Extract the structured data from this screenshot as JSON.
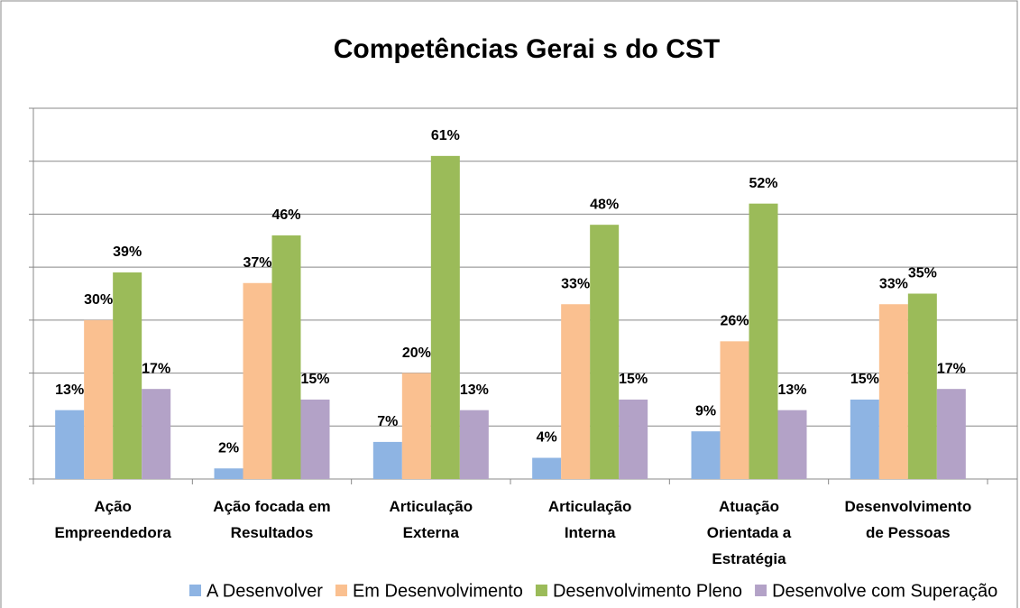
{
  "chart_data": {
    "type": "bar",
    "title": "Competências  Gerai s do CST",
    "categories": [
      "Ação\nEmpreendedora",
      "Ação focada em\nResultados",
      "Articulação\nExterna",
      "Articulação\nInterna",
      "Atuação\nOrientada a\nEstratégia",
      "Desenvolvimento\nde Pessoas"
    ],
    "series": [
      {
        "name": "A Desenvolver",
        "color": "#8eb4e3",
        "values": [
          13,
          2,
          7,
          4,
          9,
          15
        ],
        "value_labels": [
          "13%",
          "2%",
          "7%",
          "4%",
          "9%",
          "15%"
        ]
      },
      {
        "name": "Em Desenvolvimento",
        "color": "#fac090",
        "values": [
          30,
          37,
          20,
          33,
          26,
          33
        ],
        "value_labels": [
          "30%",
          "37%",
          "20%",
          "33%",
          "26%",
          "33%"
        ]
      },
      {
        "name": "Desenvolvimento Pleno",
        "color": "#9bbb59",
        "values": [
          39,
          46,
          61,
          48,
          52,
          35
        ],
        "value_labels": [
          "39%",
          "46%",
          "61%",
          "48%",
          "52%",
          "35%"
        ]
      },
      {
        "name": "Desenvolve com Superação",
        "color": "#b3a2c7",
        "values": [
          17,
          15,
          13,
          15,
          13,
          17
        ],
        "value_labels": [
          "17%",
          "15%",
          "13%",
          "15%",
          "13%",
          "17%"
        ]
      }
    ],
    "ylim": [
      0,
      70
    ],
    "yticks": [
      0,
      10,
      20,
      30,
      40,
      50,
      60,
      70
    ],
    "grid": true,
    "legend": "bottom"
  }
}
